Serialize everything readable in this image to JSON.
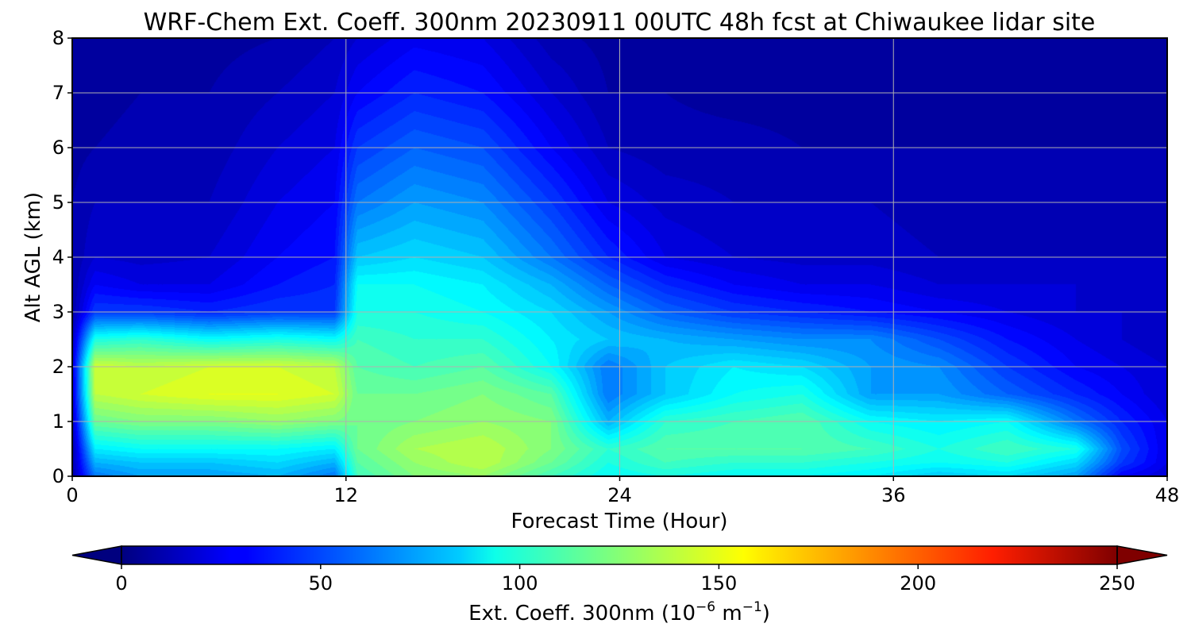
{
  "chart_data": {
    "type": "heatmap",
    "title": "WRF-Chem Ext. Coeff. 300nm  20230911 00UTC 48h fcst at Chiwaukee lidar site",
    "xlabel": "Forecast Time (Hour)",
    "ylabel": "Alt AGL (km)",
    "xlim": [
      0,
      48
    ],
    "ylim": [
      0,
      8
    ],
    "x_ticks": [
      "0",
      "12",
      "24",
      "36",
      "48"
    ],
    "y_ticks": [
      "0",
      "1",
      "2",
      "3",
      "4",
      "5",
      "6",
      "7",
      "8"
    ],
    "grid": true,
    "colormap": "jet",
    "x": [
      0,
      1,
      3,
      6,
      9,
      11.5,
      12.5,
      15,
      18,
      21,
      23.5,
      26,
      29,
      32,
      35,
      38,
      41,
      44,
      46,
      48
    ],
    "y": [
      0,
      0.25,
      0.5,
      1.0,
      1.5,
      2.0,
      2.5,
      3.0,
      3.5,
      4.0,
      5.0,
      6.0,
      7.0,
      8.0
    ],
    "z": [
      [
        10,
        60,
        70,
        70,
        75,
        60,
        110,
        125,
        130,
        110,
        95,
        100,
        95,
        95,
        90,
        80,
        85,
        70,
        30,
        20
      ],
      [
        10,
        75,
        80,
        80,
        85,
        75,
        115,
        130,
        140,
        120,
        100,
        110,
        105,
        105,
        100,
        95,
        100,
        85,
        45,
        25
      ],
      [
        10,
        90,
        95,
        95,
        95,
        90,
        120,
        135,
        140,
        125,
        105,
        115,
        115,
        115,
        110,
        100,
        110,
        100,
        50,
        25
      ],
      [
        15,
        120,
        125,
        125,
        130,
        125,
        120,
        125,
        130,
        125,
        75,
        105,
        110,
        115,
        95,
        90,
        95,
        60,
        40,
        25
      ],
      [
        20,
        140,
        145,
        150,
        150,
        145,
        120,
        120,
        125,
        115,
        60,
        80,
        95,
        100,
        70,
        70,
        55,
        40,
        30,
        20
      ],
      [
        20,
        145,
        140,
        145,
        145,
        140,
        115,
        110,
        115,
        95,
        60,
        80,
        90,
        85,
        70,
        65,
        45,
        30,
        25,
        20
      ],
      [
        15,
        100,
        105,
        95,
        100,
        95,
        110,
        105,
        105,
        90,
        80,
        75,
        70,
        65,
        65,
        50,
        35,
        25,
        20,
        15
      ],
      [
        10,
        45,
        45,
        40,
        45,
        45,
        100,
        100,
        95,
        85,
        70,
        55,
        45,
        40,
        35,
        30,
        25,
        20,
        20,
        15
      ],
      [
        10,
        30,
        25,
        25,
        35,
        40,
        95,
        95,
        90,
        75,
        55,
        40,
        30,
        25,
        25,
        20,
        20,
        20,
        15,
        15
      ],
      [
        10,
        20,
        18,
        20,
        30,
        35,
        80,
        85,
        80,
        60,
        40,
        25,
        20,
        18,
        18,
        15,
        15,
        15,
        15,
        15
      ],
      [
        10,
        15,
        15,
        15,
        25,
        30,
        60,
        70,
        65,
        45,
        25,
        18,
        15,
        15,
        15,
        12,
        12,
        12,
        12,
        12
      ],
      [
        8,
        10,
        12,
        12,
        20,
        25,
        45,
        55,
        50,
        30,
        15,
        12,
        12,
        10,
        10,
        10,
        10,
        10,
        10,
        10
      ],
      [
        5,
        8,
        10,
        10,
        15,
        20,
        30,
        40,
        35,
        20,
        10,
        10,
        8,
        8,
        8,
        8,
        8,
        8,
        8,
        8
      ],
      [
        5,
        5,
        8,
        8,
        10,
        15,
        20,
        28,
        25,
        12,
        8,
        6,
        5,
        5,
        5,
        5,
        5,
        5,
        5,
        5
      ]
    ],
    "colorbar": {
      "min": 0,
      "max": 250,
      "ticks": [
        "0",
        "50",
        "100",
        "150",
        "200",
        "250"
      ],
      "extend": "both",
      "label_main": "Ext. Coeff. 300nm  (10",
      "label_exp1": "−6",
      "label_mid": " m",
      "label_exp2": "−1",
      "label_end": ")"
    }
  }
}
